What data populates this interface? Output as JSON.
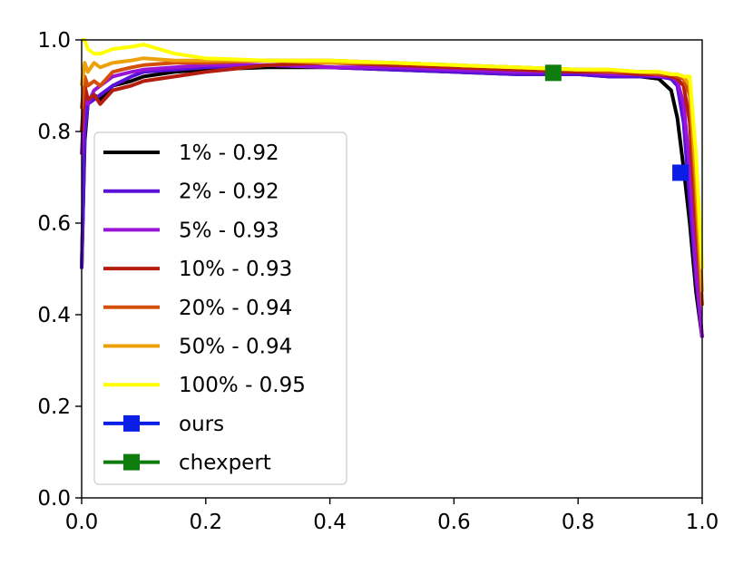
{
  "chart_data": {
    "type": "line",
    "title": "",
    "xlabel": "",
    "ylabel": "",
    "xlim": [
      0,
      1
    ],
    "ylim": [
      0,
      1
    ],
    "xticks": [
      "0.0",
      "0.2",
      "0.4",
      "0.6",
      "0.8",
      "1.0"
    ],
    "yticks": [
      "0.0",
      "0.2",
      "0.4",
      "0.6",
      "0.8",
      "1.0"
    ],
    "grid": false,
    "legend_position": "lower-left",
    "series": [
      {
        "name": "1% - 0.92",
        "color": "#000000",
        "x": [
          0.0,
          0.005,
          0.01,
          0.02,
          0.03,
          0.05,
          0.08,
          0.1,
          0.15,
          0.2,
          0.3,
          0.4,
          0.5,
          0.6,
          0.7,
          0.8,
          0.85,
          0.9,
          0.93,
          0.95,
          0.96,
          0.97,
          0.98,
          0.99,
          1.0
        ],
        "y": [
          0.5,
          0.78,
          0.86,
          0.88,
          0.87,
          0.9,
          0.91,
          0.92,
          0.93,
          0.935,
          0.94,
          0.94,
          0.935,
          0.93,
          0.925,
          0.925,
          0.92,
          0.92,
          0.915,
          0.89,
          0.83,
          0.72,
          0.6,
          0.45,
          0.35
        ]
      },
      {
        "name": "2% - 0.92",
        "color": "#5a12d8",
        "x": [
          0.0,
          0.005,
          0.01,
          0.02,
          0.03,
          0.05,
          0.08,
          0.1,
          0.15,
          0.2,
          0.3,
          0.4,
          0.5,
          0.6,
          0.7,
          0.8,
          0.85,
          0.9,
          0.93,
          0.95,
          0.96,
          0.97,
          0.98,
          0.99,
          1.0
        ],
        "y": [
          0.5,
          0.8,
          0.86,
          0.87,
          0.88,
          0.9,
          0.92,
          0.93,
          0.935,
          0.94,
          0.945,
          0.94,
          0.935,
          0.93,
          0.925,
          0.925,
          0.92,
          0.92,
          0.92,
          0.915,
          0.9,
          0.82,
          0.65,
          0.48,
          0.35
        ]
      },
      {
        "name": "5% - 0.93",
        "color": "#9a14d8",
        "x": [
          0.0,
          0.005,
          0.01,
          0.02,
          0.03,
          0.05,
          0.08,
          0.1,
          0.15,
          0.2,
          0.3,
          0.4,
          0.5,
          0.6,
          0.7,
          0.8,
          0.85,
          0.9,
          0.93,
          0.95,
          0.96,
          0.97,
          0.98,
          0.99,
          1.0
        ],
        "y": [
          0.75,
          0.88,
          0.86,
          0.89,
          0.9,
          0.92,
          0.93,
          0.935,
          0.94,
          0.945,
          0.945,
          0.94,
          0.94,
          0.935,
          0.93,
          0.93,
          0.925,
          0.925,
          0.92,
          0.92,
          0.91,
          0.86,
          0.72,
          0.5,
          0.35
        ]
      },
      {
        "name": "10% - 0.93",
        "color": "#b51e0e",
        "x": [
          0.0,
          0.005,
          0.01,
          0.02,
          0.03,
          0.05,
          0.08,
          0.1,
          0.15,
          0.2,
          0.3,
          0.4,
          0.5,
          0.6,
          0.7,
          0.8,
          0.85,
          0.9,
          0.93,
          0.95,
          0.96,
          0.97,
          0.98,
          0.99,
          1.0
        ],
        "y": [
          0.8,
          0.9,
          0.87,
          0.88,
          0.86,
          0.89,
          0.9,
          0.91,
          0.92,
          0.93,
          0.945,
          0.95,
          0.945,
          0.94,
          0.935,
          0.93,
          0.93,
          0.925,
          0.925,
          0.92,
          0.915,
          0.9,
          0.82,
          0.6,
          0.42
        ]
      },
      {
        "name": "20% - 0.94",
        "color": "#d4500a",
        "x": [
          0.0,
          0.005,
          0.01,
          0.02,
          0.03,
          0.05,
          0.08,
          0.1,
          0.15,
          0.2,
          0.3,
          0.4,
          0.5,
          0.6,
          0.7,
          0.8,
          0.85,
          0.9,
          0.93,
          0.95,
          0.96,
          0.97,
          0.98,
          0.99,
          1.0
        ],
        "y": [
          0.85,
          0.92,
          0.9,
          0.91,
          0.9,
          0.93,
          0.94,
          0.945,
          0.95,
          0.95,
          0.955,
          0.955,
          0.95,
          0.945,
          0.94,
          0.935,
          0.93,
          0.93,
          0.925,
          0.925,
          0.92,
          0.915,
          0.88,
          0.65,
          0.42
        ]
      },
      {
        "name": "50% - 0.94",
        "color": "#eca00a",
        "x": [
          0.0,
          0.005,
          0.01,
          0.02,
          0.03,
          0.05,
          0.08,
          0.1,
          0.15,
          0.2,
          0.3,
          0.4,
          0.5,
          0.6,
          0.7,
          0.8,
          0.85,
          0.9,
          0.93,
          0.95,
          0.96,
          0.97,
          0.98,
          0.99,
          1.0
        ],
        "y": [
          0.9,
          0.95,
          0.93,
          0.95,
          0.94,
          0.95,
          0.955,
          0.96,
          0.955,
          0.955,
          0.955,
          0.95,
          0.95,
          0.945,
          0.94,
          0.935,
          0.935,
          0.93,
          0.93,
          0.925,
          0.925,
          0.92,
          0.9,
          0.7,
          0.45
        ]
      },
      {
        "name": "100% - 0.95",
        "color": "#ffff00",
        "x": [
          0.0,
          0.005,
          0.01,
          0.02,
          0.03,
          0.05,
          0.08,
          0.1,
          0.15,
          0.2,
          0.3,
          0.4,
          0.5,
          0.6,
          0.7,
          0.8,
          0.85,
          0.9,
          0.93,
          0.95,
          0.96,
          0.97,
          0.98,
          0.99,
          1.0
        ],
        "y": [
          1.0,
          1.0,
          0.98,
          0.97,
          0.97,
          0.98,
          0.985,
          0.99,
          0.97,
          0.96,
          0.955,
          0.955,
          0.95,
          0.945,
          0.94,
          0.935,
          0.935,
          0.93,
          0.93,
          0.925,
          0.925,
          0.92,
          0.92,
          0.75,
          0.5
        ]
      }
    ],
    "markers": [
      {
        "name": "ours",
        "color": "#0a1ee8",
        "x": 0.965,
        "y": 0.71
      },
      {
        "name": "chexpert",
        "color": "#0e7d0e",
        "x": 0.76,
        "y": 0.928
      }
    ]
  }
}
